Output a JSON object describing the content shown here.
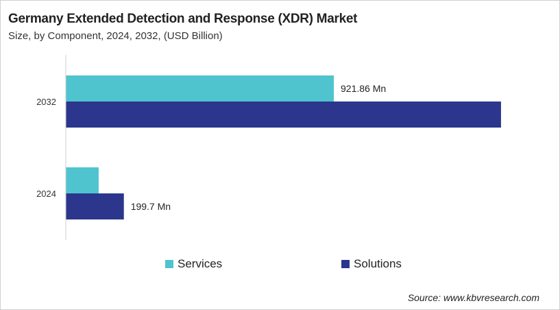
{
  "chart_data": {
    "type": "bar",
    "orientation": "horizontal",
    "title": "Germany Extended Detection and Response (XDR) Market",
    "subtitle": "Size, by Component, 2024, 2032, (USD Billion)",
    "categories": [
      "2032",
      "2024"
    ],
    "series": [
      {
        "name": "Services",
        "color": "#4fc4cf",
        "values": [
          921.86,
          113
        ]
      },
      {
        "name": "Solutions",
        "color": "#2b368c",
        "values": [
          1497,
          199.7
        ]
      }
    ],
    "data_labels": [
      {
        "series": "Services",
        "category": "2032",
        "text": "921.86 Mn"
      },
      {
        "series": "Solutions",
        "category": "2024",
        "text": "199.7 Mn"
      }
    ],
    "xlim": [
      0,
      1500
    ],
    "grid": false,
    "legend_position": "bottom"
  },
  "source": "Source: www.kbvresearch.com"
}
